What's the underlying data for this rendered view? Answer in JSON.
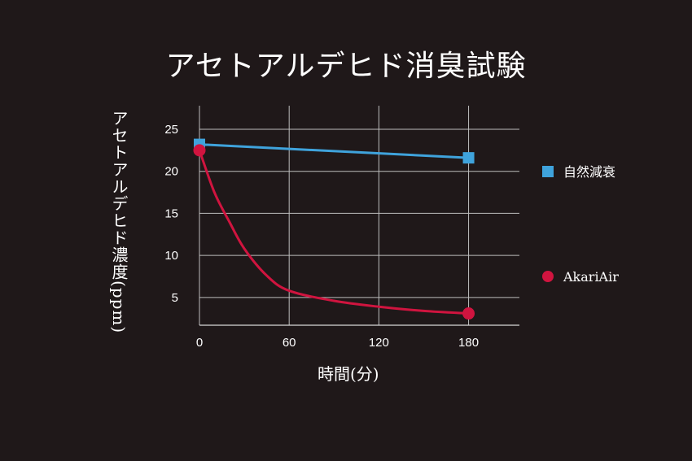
{
  "chart_data": {
    "type": "line",
    "title": "アセトアルデヒド消臭試験",
    "xlabel": "時間(分)",
    "ylabel": "アセトアルデヒド濃度(ppm)",
    "xlim": [
      0,
      214
    ],
    "ylim": [
      1.7,
      27.8
    ],
    "xticks": [
      0,
      60,
      120,
      180
    ],
    "yticks": [
      5,
      10,
      15,
      20,
      25
    ],
    "grid": true,
    "legend_position": "right",
    "series": [
      {
        "name": "自然減衰",
        "color": "#3fa3dc",
        "marker": "square",
        "smooth": false,
        "x": [
          0,
          180
        ],
        "y": [
          23.2,
          21.6
        ]
      },
      {
        "name": "AkariAir",
        "color": "#d0143f",
        "marker": "circle",
        "smooth": true,
        "x": [
          0,
          10,
          20,
          30,
          45,
          60,
          90,
          120,
          150,
          180
        ],
        "y": [
          22.5,
          17.5,
          14.0,
          10.8,
          7.6,
          5.8,
          4.6,
          3.9,
          3.4,
          3.1
        ],
        "marker_x": [
          0,
          180
        ]
      }
    ]
  }
}
